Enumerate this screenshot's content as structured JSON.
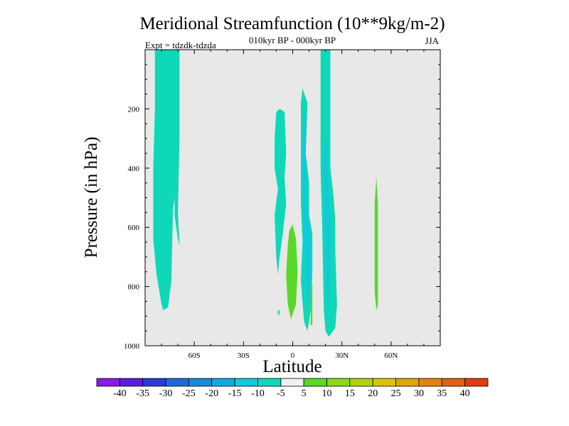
{
  "chart_data": {
    "type": "heatmap",
    "title": "Meridional Streamfunction (10**9kg/m-2)",
    "subtitle": "010kyr BP - 000kyr BP",
    "left_label": "Expt = tdzdk-tdzda",
    "right_label": "JJA",
    "xlabel": "Latitude",
    "ylabel": "Pressure (in hPa)",
    "xlim": [
      -90,
      90
    ],
    "ylim": [
      1000,
      0
    ],
    "x_ticks": [
      {
        "value": -60,
        "label": "60S"
      },
      {
        "value": -30,
        "label": "30S"
      },
      {
        "value": 0,
        "label": "0"
      },
      {
        "value": 30,
        "label": "30N"
      },
      {
        "value": 60,
        "label": "60N"
      }
    ],
    "y_ticks": [
      {
        "value": 200,
        "label": "200"
      },
      {
        "value": 400,
        "label": "400"
      },
      {
        "value": 600,
        "label": "600"
      },
      {
        "value": 800,
        "label": "800"
      },
      {
        "value": 1000,
        "label": "1000"
      }
    ],
    "background_color": "#e8e8e8",
    "colorbar": {
      "labels": [
        "-40",
        "-35",
        "-30",
        "-25",
        "-20",
        "-15",
        "-10",
        "-5",
        "5",
        "10",
        "15",
        "20",
        "25",
        "30",
        "35",
        "40"
      ],
      "colors": [
        "#8a1be0",
        "#5a1ee0",
        "#2a3ad8",
        "#1e68dc",
        "#1888dc",
        "#12a8e0",
        "#12c8dc",
        "#0ed8b8",
        "#f0f0f0",
        "#5ad828",
        "#8ad81a",
        "#b0d012",
        "#d8c40e",
        "#e0a40a",
        "#e08410",
        "#e06010",
        "#e03c10"
      ]
    },
    "regions": [
      {
        "name": "sh-polar-neg-band",
        "value": -7,
        "color": "#0ed8b8",
        "polygon": [
          [
            -84,
            0
          ],
          [
            -69,
            0
          ],
          [
            -69,
            300
          ],
          [
            -70,
            550
          ],
          [
            -69,
            660
          ],
          [
            -70,
            640
          ],
          [
            -72,
            560
          ],
          [
            -72,
            500
          ],
          [
            -73,
            540
          ],
          [
            -74,
            780
          ],
          [
            -76,
            870
          ],
          [
            -79,
            880
          ],
          [
            -80,
            860
          ],
          [
            -83,
            760
          ],
          [
            -85,
            640
          ],
          [
            -85,
            400
          ],
          [
            -84,
            200
          ]
        ]
      },
      {
        "name": "eq-neg-upper",
        "value": -7,
        "color": "#0ed8b8",
        "polygon": [
          [
            -10,
            210
          ],
          [
            -8,
            200
          ],
          [
            -5,
            210
          ],
          [
            -4,
            350
          ],
          [
            -5,
            430
          ],
          [
            -4,
            520
          ],
          [
            -6,
            620
          ],
          [
            -8,
            700
          ],
          [
            -9,
            760
          ],
          [
            -10,
            700
          ],
          [
            -11,
            560
          ],
          [
            -9,
            470
          ],
          [
            -11,
            400
          ],
          [
            -11,
            300
          ]
        ]
      },
      {
        "name": "eq-pos-core",
        "value": 7,
        "color": "#5ad828",
        "polygon": [
          [
            -2,
            610
          ],
          [
            0,
            590
          ],
          [
            2,
            640
          ],
          [
            3,
            750
          ],
          [
            2,
            860
          ],
          [
            -1,
            910
          ],
          [
            -3,
            860
          ],
          [
            -4,
            760
          ],
          [
            -3,
            660
          ]
        ]
      },
      {
        "name": "nh-neg-band",
        "value": -7,
        "color": "#0ed8b8",
        "polygon": [
          [
            6,
            130
          ],
          [
            9,
            180
          ],
          [
            8,
            350
          ],
          [
            10,
            450
          ],
          [
            10,
            560
          ],
          [
            12,
            620
          ],
          [
            12,
            750
          ],
          [
            11,
            880
          ],
          [
            9,
            950
          ],
          [
            7,
            920
          ],
          [
            5,
            780
          ],
          [
            6,
            650
          ],
          [
            5,
            520
          ],
          [
            5,
            320
          ],
          [
            5,
            180
          ]
        ]
      },
      {
        "name": "nh-neg-core",
        "value": -12,
        "color": "#12c8dc",
        "polygon": [
          [
            7,
            200
          ],
          [
            8,
            260
          ],
          [
            8,
            420
          ],
          [
            9,
            550
          ],
          [
            11,
            650
          ],
          [
            11,
            820
          ],
          [
            9,
            880
          ],
          [
            8,
            780
          ],
          [
            7,
            620
          ],
          [
            6,
            460
          ],
          [
            6,
            320
          ]
        ]
      },
      {
        "name": "nh-pos-thin",
        "value": 7,
        "color": "#5ad828",
        "polygon": [
          [
            11,
            790
          ],
          [
            12,
            790
          ],
          [
            12,
            930
          ],
          [
            11,
            930
          ]
        ]
      },
      {
        "name": "nh-subtropic-neg-band",
        "value": -7,
        "color": "#0ed8b8",
        "polygon": [
          [
            17,
            0
          ],
          [
            23,
            0
          ],
          [
            23,
            200
          ],
          [
            23,
            400
          ],
          [
            25,
            500
          ],
          [
            26,
            580
          ],
          [
            26,
            680
          ],
          [
            27,
            860
          ],
          [
            26,
            940
          ],
          [
            22,
            970
          ],
          [
            20,
            950
          ],
          [
            19,
            880
          ],
          [
            18,
            600
          ],
          [
            17,
            400
          ]
        ]
      },
      {
        "name": "nh-subtropic-neg-core",
        "value": -12,
        "color": "#12c8dc",
        "polygon": [
          [
            19,
            340
          ],
          [
            21,
            300
          ],
          [
            22,
            500
          ],
          [
            23,
            620
          ],
          [
            23,
            760
          ],
          [
            22,
            880
          ],
          [
            21,
            870
          ],
          [
            20,
            700
          ],
          [
            19,
            520
          ]
        ]
      },
      {
        "name": "nh-midlat-pos",
        "value": 7,
        "color": "#5ad828",
        "polygon": [
          [
            51,
            430
          ],
          [
            52,
            520
          ],
          [
            52,
            720
          ],
          [
            52,
            860
          ],
          [
            51,
            880
          ],
          [
            50,
            820
          ],
          [
            50,
            620
          ],
          [
            50,
            520
          ]
        ]
      },
      {
        "name": "eq-speck",
        "value": -7,
        "color": "#0ed8b8",
        "polygon": [
          [
            -9,
            880
          ],
          [
            -8,
            880
          ],
          [
            -8,
            895
          ],
          [
            -9,
            895
          ]
        ]
      }
    ]
  }
}
